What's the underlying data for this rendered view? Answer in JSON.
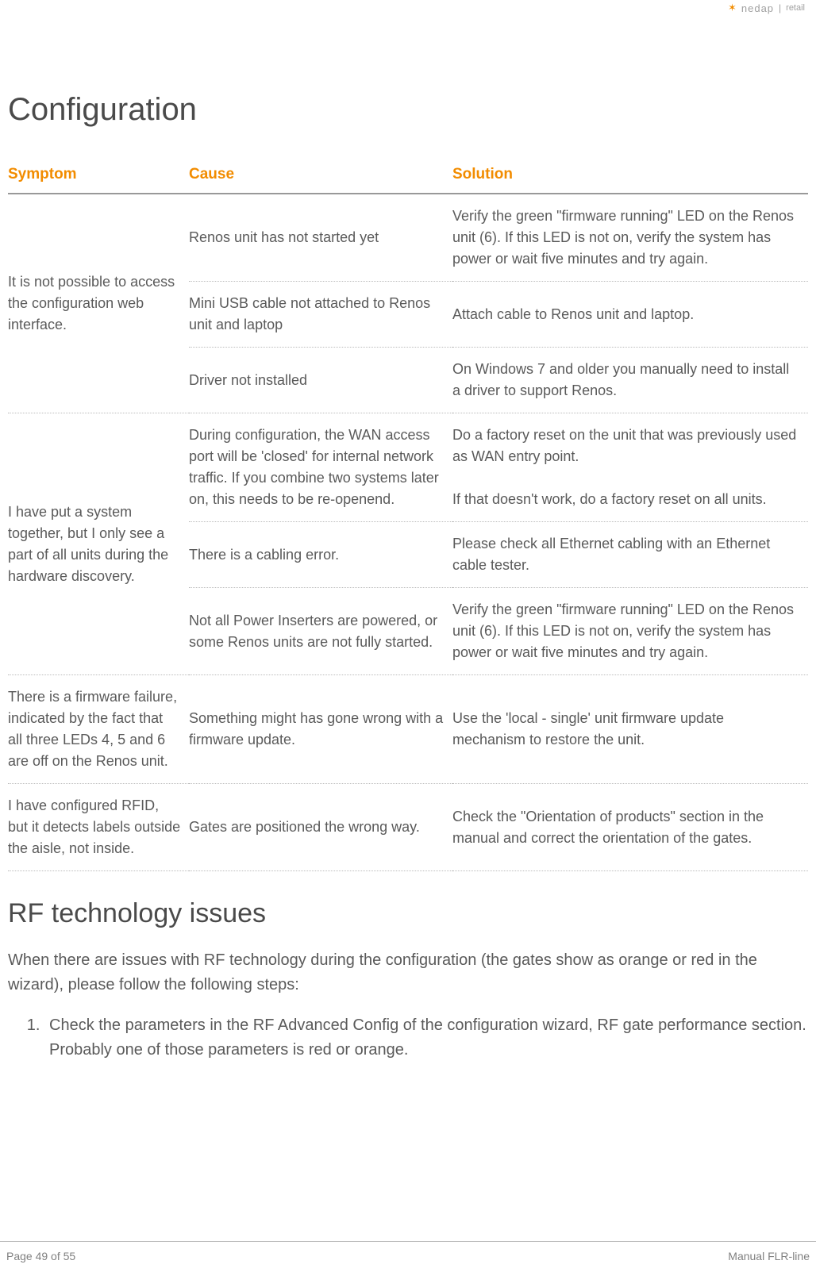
{
  "header": {
    "logo_word": "nedap",
    "logo_tail": "retail"
  },
  "sections": {
    "configuration_title": "Configuration",
    "rf_title": "RF technology issues",
    "rf_intro": "When there are issues with RF technology during the configuration (the gates show as orange or red in the wizard), please follow the following steps:",
    "rf_steps": [
      "Check the parameters in the RF Advanced Config of the configuration wizard, RF gate performance section. Probably one of those parameters is red or orange."
    ]
  },
  "table": {
    "columns": {
      "symptom": "Symptom",
      "cause": "Cause",
      "solution": "Solution"
    },
    "rows": [
      {
        "symptom": "It is not possible to access the configuration web interface.",
        "cause": "Renos unit has not started yet",
        "solution": "Verify the green \"firmware running\" LED on the Renos unit (6). If this LED is not on, verify the system has power or wait five minutes and try again.",
        "new_symptom": true
      },
      {
        "cause": "Mini USB cable not attached to Renos unit and laptop",
        "solution": "Attach cable to Renos unit and laptop.",
        "new_symptom": false
      },
      {
        "cause": "Driver not installed",
        "solution": "On Windows 7 and older you manually need to install a driver to support Renos.",
        "new_symptom": false
      },
      {
        "symptom": "I have put a system together, but I only see a part of all units during the hardware discovery.",
        "cause": "During configuration, the WAN access port will be 'closed' for internal network traffic. If you combine two systems later on, this needs to be re-openend.",
        "solution": "Do a factory reset on the unit that was previously used as WAN entry point.\nIf that doesn't work, do a factory reset on all units.",
        "new_symptom": true
      },
      {
        "cause": "There is a cabling error.",
        "solution": "Please check all Ethernet cabling with an Ethernet cable tester.",
        "new_symptom": false
      },
      {
        "cause": "Not all Power Inserters are powered, or some Renos units are not fully started.",
        "solution": "Verify the green \"firmware running\" LED on the Renos unit (6). If this LED is not on, verify the system has power or wait five minutes and try again.",
        "new_symptom": false
      },
      {
        "symptom": "There is a firmware failure, indicated by the fact that all three LEDs 4, 5 and 6 are off on the Renos unit.",
        "cause": "Something might has gone wrong with a firmware update.",
        "solution": "Use the 'local - single' unit firmware update mechanism to restore the unit.",
        "new_symptom": true
      },
      {
        "symptom": "I have configured RFID, but it detects labels outside the aisle, not inside.",
        "cause": "Gates are positioned the wrong way.",
        "solution": "Check the \"Orientation of products\" section in the manual and correct the orientation of the gates.",
        "new_symptom": true
      }
    ]
  },
  "footer": {
    "page": "Page 49 of 55",
    "doc": "Manual FLR-line"
  },
  "colors": {
    "accent": "#f28c00",
    "text": "#5a5a5a",
    "heading": "#4a4a4a",
    "rule": "#bbbbbb"
  }
}
